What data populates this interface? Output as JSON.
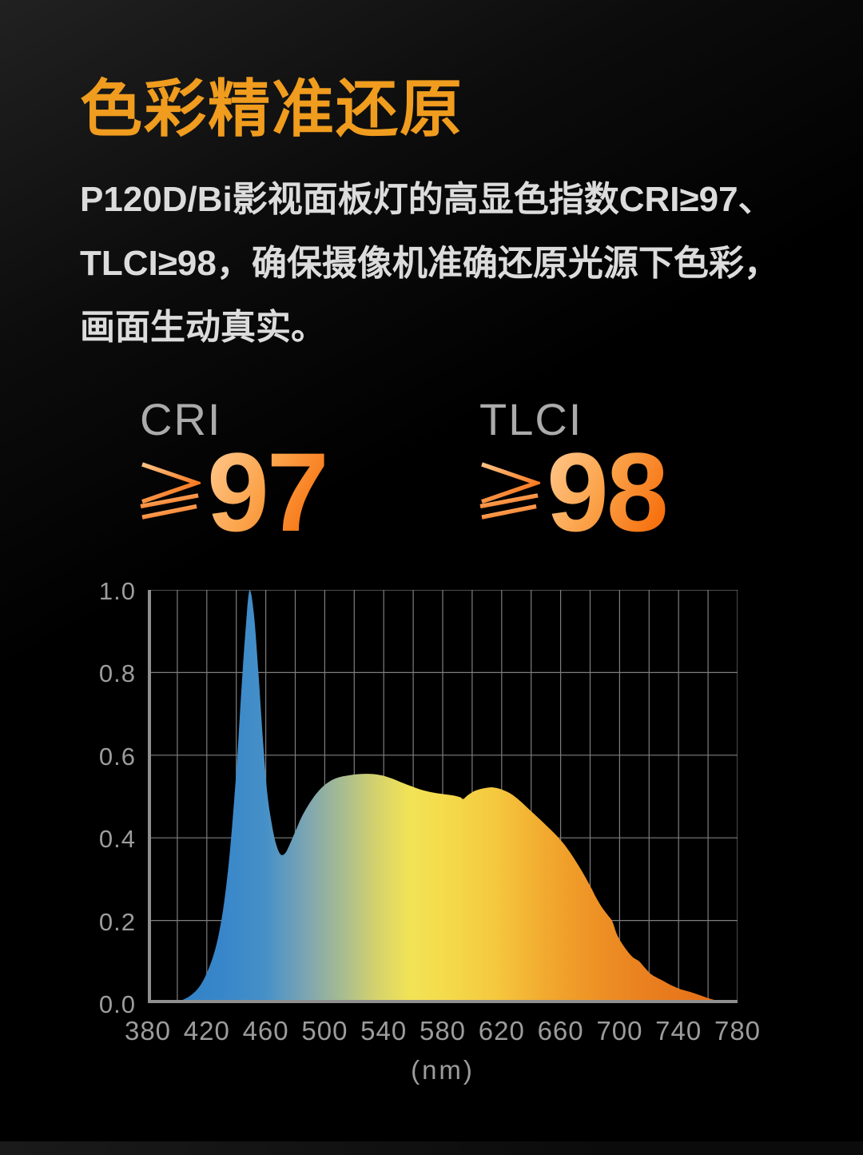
{
  "page": {
    "background_color": "#000000",
    "background_glow": "#212121",
    "bottom_strip_color": "#161616"
  },
  "header": {
    "title": "色彩精准还原",
    "title_color": "#F09C1E"
  },
  "intro": {
    "lines": [
      "P120D/Bi影视面板灯的高显色指数CRI≥97、",
      "TLCI≥98，确保摄像机准确还原光源下色彩，",
      "画面生动真实。"
    ],
    "text_color": "#DCDCDC"
  },
  "stats": [
    {
      "label": "CRI",
      "operator": "≥",
      "value": "97"
    },
    {
      "label": "TLCI",
      "operator": "≥",
      "value": "98"
    }
  ],
  "colors": {
    "stat_label_gray": "#ABABAB",
    "stat_gradient_top": "#FFC88D",
    "stat_gradient_bottom": "#F66703",
    "axis_label_gray": "#9C9C9C",
    "grid_line": "#7E7E7E",
    "axis_line": "#8F8F8F"
  },
  "chart_data": {
    "type": "area",
    "title": "",
    "xlabel": "(nm)",
    "ylabel": "",
    "series_name": "normalized spectral power distribution",
    "x_range": [
      380,
      780
    ],
    "y_range": [
      0,
      1
    ],
    "x_tick_labels": [
      "380",
      "420",
      "460",
      "500",
      "540",
      "580",
      "620",
      "660",
      "700",
      "740",
      "780"
    ],
    "x_tick_step": 40,
    "x_grid_step": 20,
    "y_tick_labels": [
      "1.0",
      "0.8",
      "0.6",
      "0.4",
      "0.2",
      "0.0"
    ],
    "y_grid_step": 0.2,
    "grid": true,
    "legend": false,
    "gradient_stops": [
      [
        380,
        "#2E7FC4"
      ],
      [
        430,
        "#3886CA"
      ],
      [
        460,
        "#4690C8"
      ],
      [
        488,
        "#7EA6B2"
      ],
      [
        512,
        "#A8BC90"
      ],
      [
        536,
        "#D6D36B"
      ],
      [
        558,
        "#F2E356"
      ],
      [
        584,
        "#F4DA4A"
      ],
      [
        616,
        "#F5C83E"
      ],
      [
        648,
        "#F2AB2F"
      ],
      [
        680,
        "#EE9426"
      ],
      [
        713,
        "#EA8220"
      ],
      [
        746,
        "#E7761B"
      ],
      [
        780,
        "#E66D13"
      ]
    ],
    "points": [
      [
        380,
        0
      ],
      [
        396,
        0.001
      ],
      [
        402,
        0.006
      ],
      [
        408,
        0.016
      ],
      [
        414,
        0.035
      ],
      [
        419,
        0.065
      ],
      [
        424,
        0.11
      ],
      [
        428,
        0.165
      ],
      [
        432,
        0.25
      ],
      [
        436,
        0.38
      ],
      [
        440,
        0.56
      ],
      [
        443,
        0.73
      ],
      [
        446,
        0.89
      ],
      [
        449,
        1.0
      ],
      [
        452,
        0.94
      ],
      [
        455,
        0.8
      ],
      [
        458,
        0.64
      ],
      [
        461,
        0.51
      ],
      [
        464,
        0.435
      ],
      [
        467,
        0.385
      ],
      [
        470,
        0.36
      ],
      [
        473,
        0.362
      ],
      [
        476,
        0.382
      ],
      [
        480,
        0.415
      ],
      [
        484,
        0.448
      ],
      [
        488,
        0.474
      ],
      [
        492,
        0.496
      ],
      [
        496,
        0.514
      ],
      [
        500,
        0.528
      ],
      [
        505,
        0.54
      ],
      [
        510,
        0.547
      ],
      [
        516,
        0.551
      ],
      [
        522,
        0.554
      ],
      [
        528,
        0.555
      ],
      [
        534,
        0.554
      ],
      [
        540,
        0.55
      ],
      [
        546,
        0.543
      ],
      [
        552,
        0.534
      ],
      [
        558,
        0.526
      ],
      [
        564,
        0.518
      ],
      [
        570,
        0.512
      ],
      [
        576,
        0.508
      ],
      [
        582,
        0.505
      ],
      [
        588,
        0.502
      ],
      [
        592,
        0.498
      ],
      [
        594,
        0.494
      ],
      [
        597,
        0.503
      ],
      [
        602,
        0.514
      ],
      [
        608,
        0.52
      ],
      [
        614,
        0.522
      ],
      [
        620,
        0.517
      ],
      [
        626,
        0.507
      ],
      [
        632,
        0.491
      ],
      [
        638,
        0.471
      ],
      [
        644,
        0.451
      ],
      [
        650,
        0.431
      ],
      [
        656,
        0.41
      ],
      [
        662,
        0.386
      ],
      [
        668,
        0.356
      ],
      [
        674,
        0.322
      ],
      [
        680,
        0.284
      ],
      [
        684,
        0.256
      ],
      [
        688,
        0.232
      ],
      [
        692,
        0.213
      ],
      [
        695,
        0.198
      ],
      [
        698,
        0.168
      ],
      [
        701,
        0.148
      ],
      [
        705,
        0.127
      ],
      [
        709,
        0.111
      ],
      [
        713,
        0.102
      ],
      [
        717,
        0.086
      ],
      [
        721,
        0.071
      ],
      [
        725,
        0.062
      ],
      [
        729,
        0.055
      ],
      [
        733,
        0.047
      ],
      [
        737,
        0.04
      ],
      [
        741,
        0.034
      ],
      [
        745,
        0.03
      ],
      [
        749,
        0.026
      ],
      [
        753,
        0.021
      ],
      [
        757,
        0.016
      ],
      [
        761,
        0.011
      ],
      [
        765,
        0.007
      ],
      [
        769,
        0.004
      ],
      [
        773,
        0.002
      ],
      [
        777,
        0.001
      ],
      [
        780,
        0
      ]
    ]
  }
}
